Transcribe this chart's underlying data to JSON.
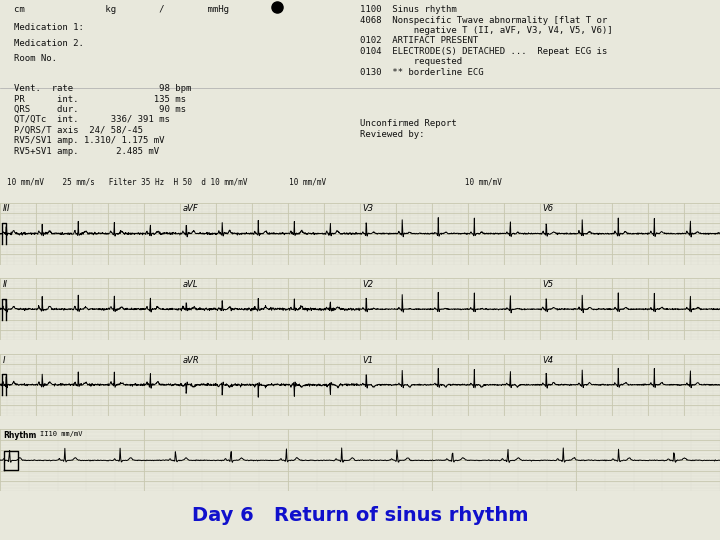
{
  "title": "Day 6   Return of sinus rhythm",
  "title_color": "#1010CC",
  "title_fontsize": 14,
  "bg_color": "#E8E8DC",
  "ecg_bg_color": "#F0F0E4",
  "grid_major_color": "#C8C8B0",
  "grid_minor_color": "#DCDCD0",
  "line_color": "#000000",
  "text_color": "#111111",
  "header_line1": "cm            kg       /        mmHg",
  "header_line2": "Medication 1:",
  "header_line3": "Medication 2.",
  "header_line4": "Room No.",
  "stats_text": "Vent.  rate                 98 bpm\nPR      int.               135 ms\nQRS     dur.                90 ms\nQT/QTc  int.       336/ 391 ms\nP/QRS/T axis   24/ 58/-45\nRV5/SV1 amp.  1.310/ 1.175 mV\nRV5+SV1 amp.        2.485 mV",
  "right_text1": "1100  Sinus rhythm\n4068  Nonspecific Twave abnormality [flat T or\n          negative T (II, aVF, V3, V4, V5, V6)]\n0102  ARTIFACT PRESENT\n0104  ELECTRODE(S) DETACHED ...  Repeat ECG is\n          requested\n0130  ** borderline ECG",
  "right_text2": "Unconfirmed Report\nReviewed by:",
  "scale_line": "10 mm/mV    25 mm/s   Filter 35 Hz  H 50  d 10 mm/mV         10 mm/mV                              10 mm/mV"
}
